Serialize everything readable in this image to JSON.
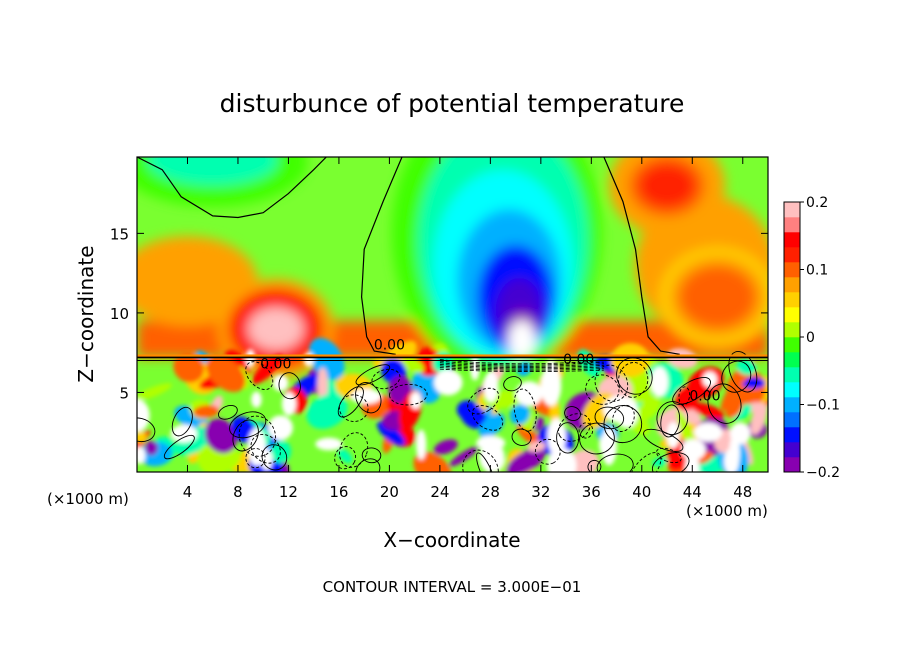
{
  "chart_data": {
    "type": "heatmap",
    "title": "disturbunce of potential temperature",
    "xlabel": "X−coordinate",
    "ylabel": "Z−coordinate",
    "x_unit_left": "(×1000 m)",
    "x_unit_right": "(×1000 m)",
    "xlim": [
      0,
      50
    ],
    "ylim": [
      0,
      19.8
    ],
    "x_ticks": [
      4,
      8,
      12,
      16,
      20,
      24,
      28,
      32,
      36,
      40,
      44,
      48
    ],
    "x_tick_labels": [
      "4",
      "8",
      "12",
      "16",
      "20",
      "24",
      "28",
      "32",
      "36",
      "40",
      "44",
      "48"
    ],
    "y_ticks": [
      5,
      10,
      15
    ],
    "y_tick_labels": [
      "5",
      "10",
      "15"
    ],
    "interface_height": 7.2,
    "colorbar": {
      "range": [
        -0.2,
        0.2
      ],
      "tick_values": [
        0.2,
        0.1,
        0,
        -0.1,
        -0.2
      ],
      "tick_labels": [
        "0.2",
        "0.1",
        "0",
        "−0.1",
        "−0.2"
      ],
      "colors": [
        "#8800b0",
        "#4400d0",
        "#0010ff",
        "#0070ff",
        "#00b0ff",
        "#00ffff",
        "#00ffb0",
        "#00ff50",
        "#40ff00",
        "#b0ff00",
        "#ffff00",
        "#ffd000",
        "#ffa000",
        "#ff6000",
        "#ff2000",
        "#ff0000",
        "#ff8080",
        "#ffc0c0"
      ]
    },
    "contour_labels": [
      {
        "text": "0.00",
        "x": 20,
        "z": 7.7
      },
      {
        "text": "0.00",
        "x": 11,
        "z": 6.5
      },
      {
        "text": "0.00",
        "x": 35,
        "z": 6.8
      },
      {
        "text": "0.00",
        "x": 45,
        "z": 4.5
      }
    ],
    "upper_features": [
      {
        "kind": "cold",
        "x": 30.5,
        "z": 8.5,
        "value": -0.2
      },
      {
        "kind": "cold",
        "x": 29,
        "z": 12,
        "value": -0.14
      },
      {
        "kind": "cold",
        "x": 6,
        "z": 19,
        "value": -0.05
      },
      {
        "kind": "warm",
        "x": 11,
        "z": 9,
        "value": 0.18
      },
      {
        "kind": "warm",
        "x": 42,
        "z": 18,
        "value": 0.12
      },
      {
        "kind": "warm",
        "x": 46,
        "z": 11,
        "value": 0.11
      }
    ],
    "footer": "CONTOUR INTERVAL = 3.000E−01"
  }
}
